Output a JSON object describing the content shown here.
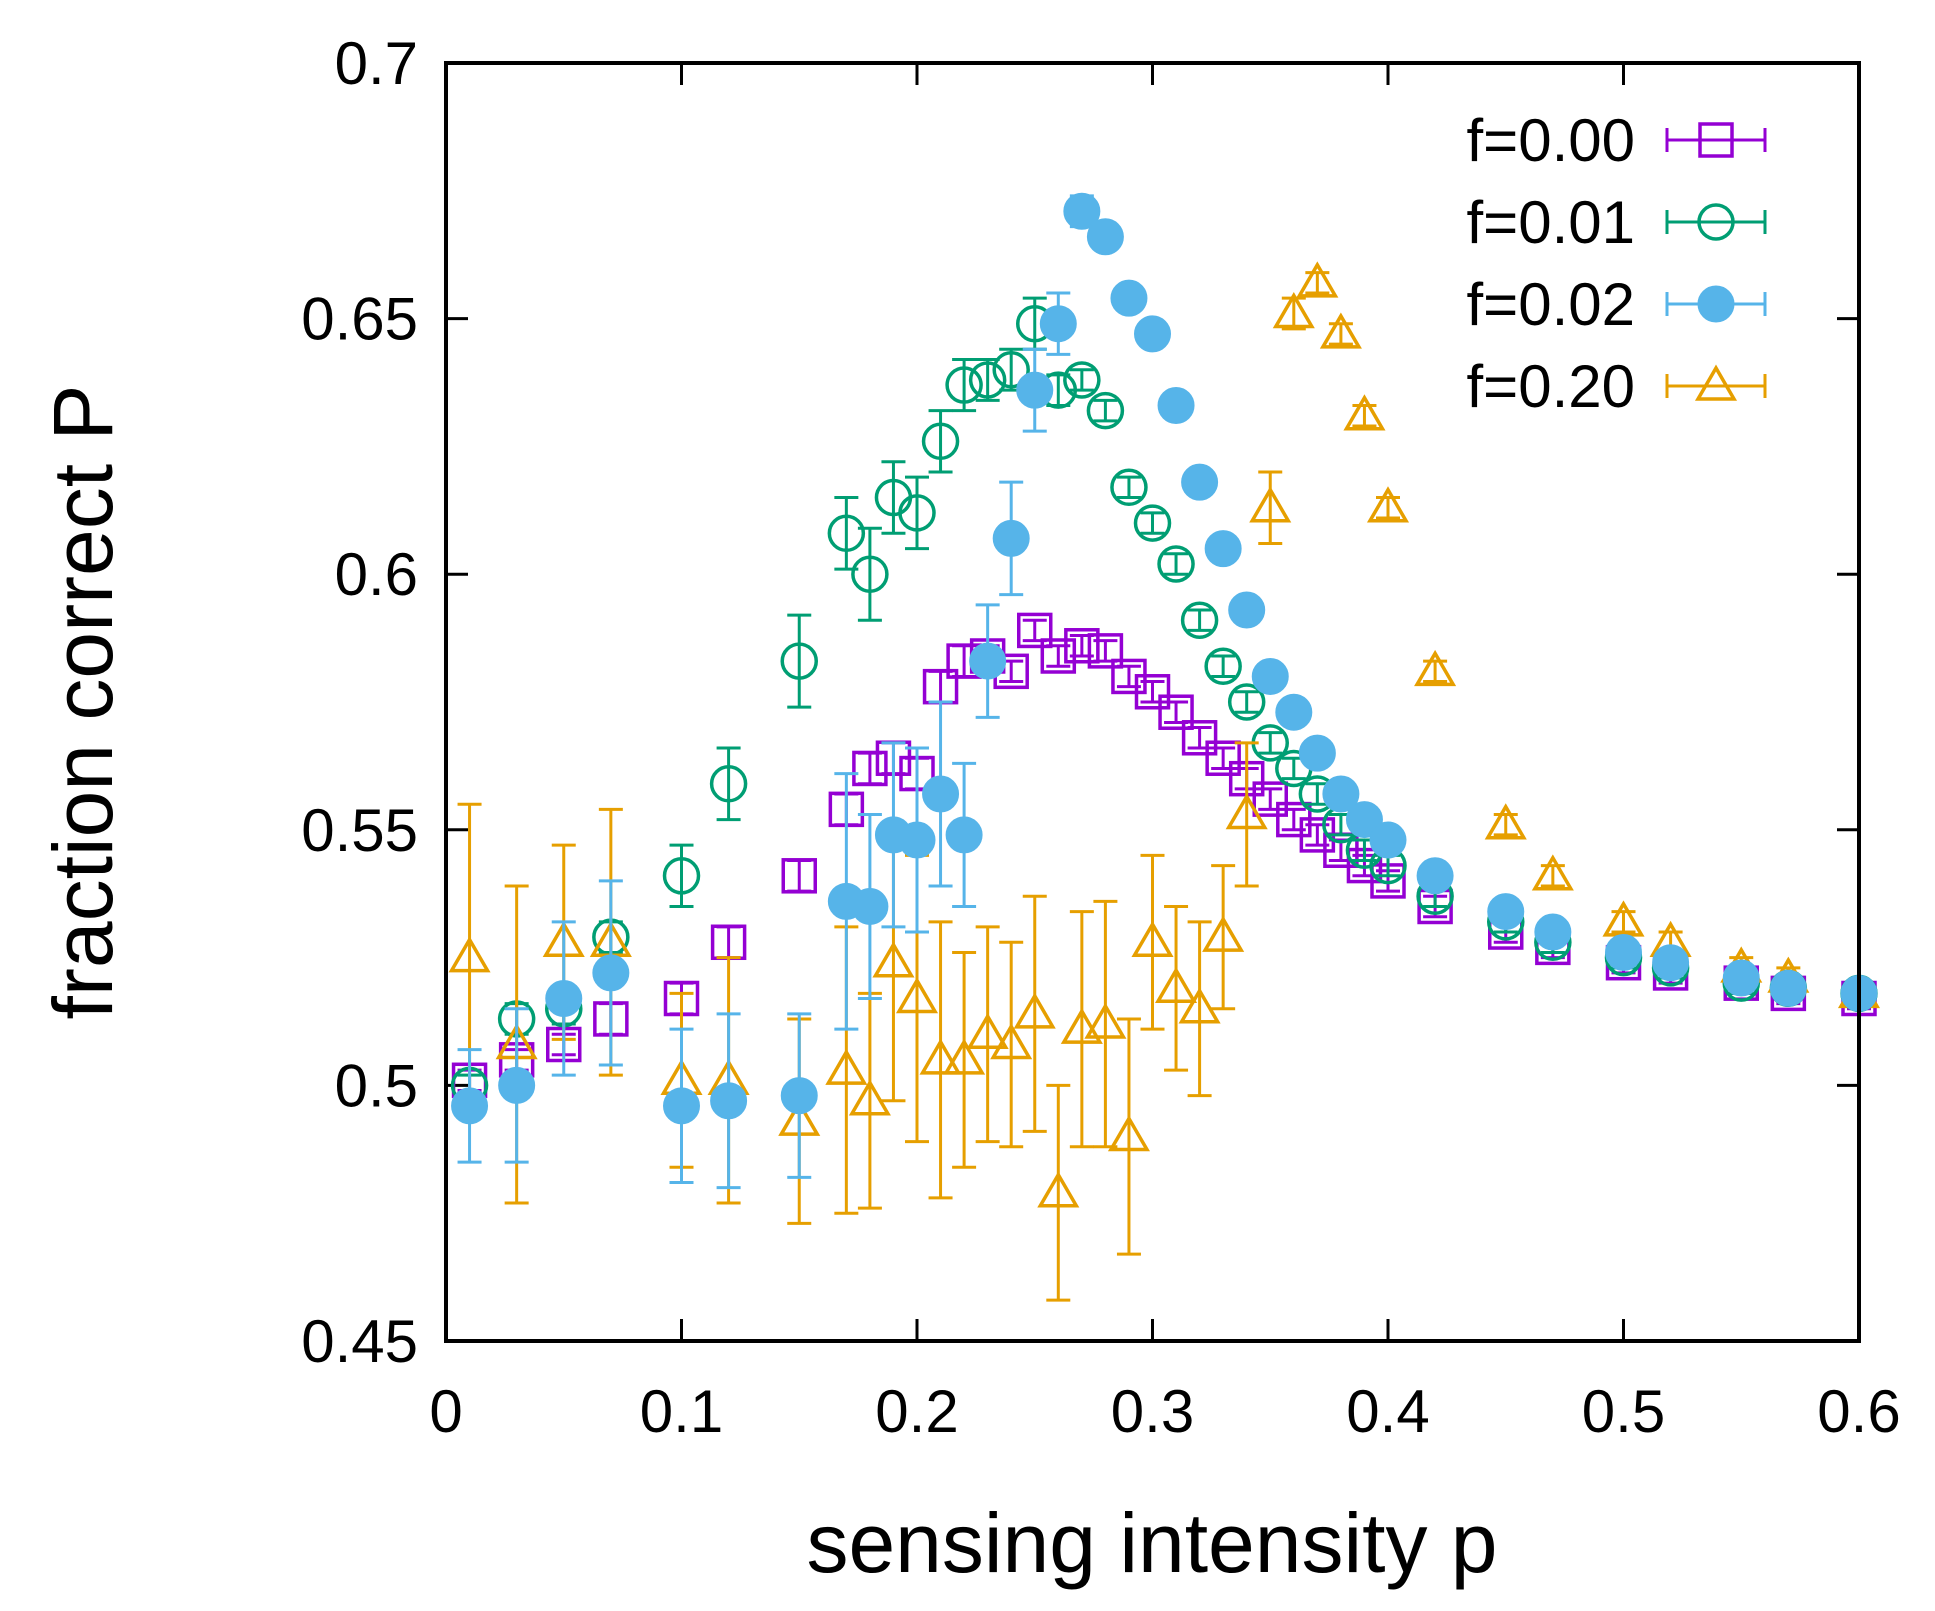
{
  "chart_data": {
    "type": "scatter",
    "title": "",
    "xlabel": "sensing intensity p",
    "ylabel": "fraction correct P",
    "xlim": [
      0,
      0.6
    ],
    "ylim": [
      0.45,
      0.7
    ],
    "xticks": [
      0,
      0.1,
      0.2,
      0.3,
      0.4,
      0.5,
      0.6
    ],
    "xtick_labels": [
      "0",
      "0.1",
      "0.2",
      "0.3",
      "0.4",
      "0.5",
      "0.6"
    ],
    "yticks": [
      0.45,
      0.5,
      0.55,
      0.6,
      0.65,
      0.7
    ],
    "ytick_labels": [
      "0.45",
      "0.5",
      "0.55",
      "0.6",
      "0.65",
      "0.7"
    ],
    "grid": false,
    "legend_position": "top-right",
    "series": [
      {
        "name": "f=0.00",
        "marker": "open-square",
        "color": "#9400D3",
        "points": [
          [
            0.01,
            0.501,
            0.002
          ],
          [
            0.03,
            0.505,
            0.002
          ],
          [
            0.05,
            0.508,
            0.002
          ],
          [
            0.07,
            0.513,
            0.003
          ],
          [
            0.1,
            0.517,
            0.003
          ],
          [
            0.12,
            0.528,
            0.003
          ],
          [
            0.15,
            0.541,
            0.003
          ],
          [
            0.17,
            0.554,
            0.003
          ],
          [
            0.18,
            0.562,
            0.003
          ],
          [
            0.19,
            0.564,
            0.003
          ],
          [
            0.2,
            0.561,
            0.003
          ],
          [
            0.21,
            0.578,
            0.003
          ],
          [
            0.22,
            0.583,
            0.003
          ],
          [
            0.23,
            0.584,
            0.002
          ],
          [
            0.24,
            0.581,
            0.002
          ],
          [
            0.25,
            0.589,
            0.002
          ],
          [
            0.26,
            0.584,
            0.002
          ],
          [
            0.27,
            0.586,
            0.002
          ],
          [
            0.28,
            0.585,
            0.002
          ],
          [
            0.29,
            0.58,
            0.002
          ],
          [
            0.3,
            0.577,
            0.002
          ],
          [
            0.31,
            0.573,
            0.002
          ],
          [
            0.32,
            0.568,
            0.002
          ],
          [
            0.33,
            0.564,
            0.002
          ],
          [
            0.34,
            0.56,
            0.002
          ],
          [
            0.35,
            0.556,
            0.002
          ],
          [
            0.36,
            0.552,
            0.002
          ],
          [
            0.37,
            0.549,
            0.002
          ],
          [
            0.38,
            0.546,
            0.002
          ],
          [
            0.39,
            0.543,
            0.002
          ],
          [
            0.4,
            0.54,
            0.002
          ],
          [
            0.42,
            0.535,
            0.002
          ],
          [
            0.45,
            0.53,
            0.002
          ],
          [
            0.47,
            0.527,
            0.002
          ],
          [
            0.5,
            0.524,
            0.002
          ],
          [
            0.52,
            0.522,
            0.002
          ],
          [
            0.55,
            0.52,
            0.002
          ],
          [
            0.57,
            0.518,
            0.002
          ],
          [
            0.6,
            0.517,
            0.002
          ]
        ]
      },
      {
        "name": "f=0.01",
        "marker": "open-circle",
        "color": "#009E73",
        "points": [
          [
            0.01,
            0.5,
            0.002
          ],
          [
            0.03,
            0.513,
            0.003
          ],
          [
            0.05,
            0.515,
            0.003
          ],
          [
            0.07,
            0.529,
            0.003
          ],
          [
            0.1,
            0.541,
            0.006
          ],
          [
            0.12,
            0.559,
            0.007
          ],
          [
            0.15,
            0.583,
            0.009
          ],
          [
            0.17,
            0.608,
            0.007
          ],
          [
            0.18,
            0.6,
            0.009
          ],
          [
            0.19,
            0.615,
            0.007
          ],
          [
            0.2,
            0.612,
            0.007
          ],
          [
            0.21,
            0.626,
            0.006
          ],
          [
            0.22,
            0.637,
            0.005
          ],
          [
            0.23,
            0.638,
            0.004
          ],
          [
            0.24,
            0.64,
            0.004
          ],
          [
            0.25,
            0.649,
            0.005
          ],
          [
            0.26,
            0.636,
            0.003
          ],
          [
            0.27,
            0.638,
            0.002
          ],
          [
            0.28,
            0.632,
            0.002
          ],
          [
            0.29,
            0.617,
            0.002
          ],
          [
            0.3,
            0.61,
            0.002
          ],
          [
            0.31,
            0.602,
            0.002
          ],
          [
            0.32,
            0.591,
            0.002
          ],
          [
            0.33,
            0.582,
            0.002
          ],
          [
            0.34,
            0.575,
            0.002
          ],
          [
            0.35,
            0.567,
            0.002
          ],
          [
            0.36,
            0.562,
            0.002
          ],
          [
            0.37,
            0.557,
            0.002
          ],
          [
            0.38,
            0.551,
            0.002
          ],
          [
            0.39,
            0.546,
            0.002
          ],
          [
            0.4,
            0.543,
            0.002
          ],
          [
            0.42,
            0.537,
            0.002
          ],
          [
            0.45,
            0.532,
            0.002
          ],
          [
            0.47,
            0.528,
            0.002
          ],
          [
            0.5,
            0.525,
            0.002
          ],
          [
            0.52,
            0.523,
            0.002
          ],
          [
            0.55,
            0.52,
            0.002
          ],
          [
            0.57,
            0.519,
            0.002
          ],
          [
            0.6,
            0.518,
            0.002
          ]
        ]
      },
      {
        "name": "f=0.02",
        "marker": "filled-circle",
        "color": "#56B4E9",
        "points": [
          [
            0.01,
            0.496,
            0.011
          ],
          [
            0.03,
            0.5,
            0.015
          ],
          [
            0.05,
            0.517,
            0.015
          ],
          [
            0.07,
            0.522,
            0.018
          ],
          [
            0.1,
            0.496,
            0.015
          ],
          [
            0.12,
            0.497,
            0.017
          ],
          [
            0.15,
            0.498,
            0.016
          ],
          [
            0.17,
            0.536,
            0.025
          ],
          [
            0.18,
            0.535,
            0.018
          ],
          [
            0.19,
            0.549,
            0.018
          ],
          [
            0.2,
            0.548,
            0.018
          ],
          [
            0.21,
            0.557,
            0.018
          ],
          [
            0.22,
            0.549,
            0.014
          ],
          [
            0.23,
            0.583,
            0.011
          ],
          [
            0.24,
            0.607,
            0.011
          ],
          [
            0.25,
            0.636,
            0.008
          ],
          [
            0.26,
            0.649,
            0.006
          ],
          [
            0.27,
            0.671,
            0.003
          ],
          [
            0.28,
            0.666,
            0.002
          ],
          [
            0.29,
            0.654,
            0.002
          ],
          [
            0.3,
            0.647,
            0.002
          ],
          [
            0.31,
            0.633,
            0.002
          ],
          [
            0.32,
            0.618,
            0.002
          ],
          [
            0.33,
            0.605,
            0.002
          ],
          [
            0.34,
            0.593,
            0.002
          ],
          [
            0.35,
            0.58,
            0.002
          ],
          [
            0.36,
            0.573,
            0.002
          ],
          [
            0.37,
            0.565,
            0.002
          ],
          [
            0.38,
            0.557,
            0.002
          ],
          [
            0.39,
            0.552,
            0.002
          ],
          [
            0.4,
            0.548,
            0.002
          ],
          [
            0.42,
            0.541,
            0.002
          ],
          [
            0.45,
            0.534,
            0.002
          ],
          [
            0.47,
            0.53,
            0.002
          ],
          [
            0.5,
            0.526,
            0.002
          ],
          [
            0.52,
            0.524,
            0.002
          ],
          [
            0.55,
            0.521,
            0.002
          ],
          [
            0.57,
            0.519,
            0.002
          ],
          [
            0.6,
            0.518,
            0.002
          ]
        ]
      },
      {
        "name": "f=0.20",
        "marker": "open-triangle",
        "color": "#E69F00",
        "points": [
          [
            0.01,
            0.525,
            0.03
          ],
          [
            0.03,
            0.508,
            0.031
          ],
          [
            0.05,
            0.528,
            0.019
          ],
          [
            0.07,
            0.528,
            0.026
          ],
          [
            0.1,
            0.501,
            0.017
          ],
          [
            0.12,
            0.501,
            0.024
          ],
          [
            0.15,
            0.493,
            0.02
          ],
          [
            0.17,
            0.503,
            0.028
          ],
          [
            0.18,
            0.497,
            0.021
          ],
          [
            0.19,
            0.524,
            0.027
          ],
          [
            0.2,
            0.517,
            0.028
          ],
          [
            0.21,
            0.505,
            0.027
          ],
          [
            0.22,
            0.505,
            0.021
          ],
          [
            0.23,
            0.51,
            0.021
          ],
          [
            0.24,
            0.508,
            0.02
          ],
          [
            0.25,
            0.514,
            0.023
          ],
          [
            0.26,
            0.479,
            0.021
          ],
          [
            0.27,
            0.511,
            0.023
          ],
          [
            0.28,
            0.512,
            0.024
          ],
          [
            0.29,
            0.49,
            0.023
          ],
          [
            0.3,
            0.528,
            0.017
          ],
          [
            0.31,
            0.519,
            0.016
          ],
          [
            0.32,
            0.515,
            0.017
          ],
          [
            0.33,
            0.529,
            0.014
          ],
          [
            0.34,
            0.553,
            0.014
          ],
          [
            0.35,
            0.613,
            0.007
          ],
          [
            0.36,
            0.651,
            0.003
          ],
          [
            0.37,
            0.657,
            0.002
          ],
          [
            0.38,
            0.647,
            0.002
          ],
          [
            0.39,
            0.631,
            0.002
          ],
          [
            0.4,
            0.613,
            0.002
          ],
          [
            0.42,
            0.581,
            0.002
          ],
          [
            0.45,
            0.551,
            0.002
          ],
          [
            0.47,
            0.541,
            0.002
          ],
          [
            0.5,
            0.532,
            0.002
          ],
          [
            0.52,
            0.528,
            0.002
          ],
          [
            0.55,
            0.523,
            0.002
          ],
          [
            0.57,
            0.521,
            0.002
          ],
          [
            0.6,
            0.518,
            0.002
          ]
        ]
      }
    ]
  }
}
